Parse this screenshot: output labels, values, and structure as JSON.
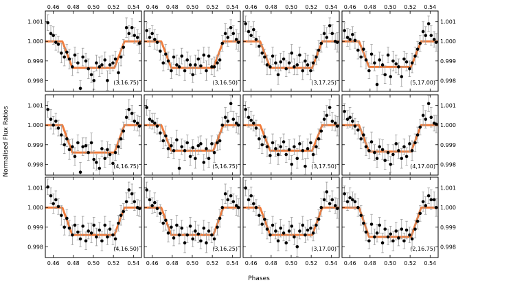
{
  "figure": {
    "xlabel": "Phases",
    "ylabel": "Normalised Flux Ratios"
  },
  "chart_data": {
    "type": "scatter",
    "layout": {
      "rows": 3,
      "cols": 4
    },
    "xlabel": "Phases",
    "ylabel": "Normalised Flux Ratios",
    "xlim": [
      0.452,
      0.548
    ],
    "ylim": [
      0.99745,
      1.00155
    ],
    "xticks": [
      0.46,
      0.48,
      0.5,
      0.52,
      0.54
    ],
    "xtick_labels": [
      "0.46",
      "0.48",
      "0.50",
      "0.52",
      "0.54"
    ],
    "yticks": [
      0.998,
      0.999,
      1.0,
      1.001
    ],
    "ytick_labels": [
      "0.998",
      "0.999",
      "1.000",
      "1.001"
    ],
    "model_color": "#f07c3c",
    "point_color": "#000000",
    "errorbar_color": "#9a9a9a",
    "phases": [
      0.4545,
      0.4575,
      0.46,
      0.4625,
      0.465,
      0.468,
      0.471,
      0.4735,
      0.476,
      0.479,
      0.4815,
      0.4845,
      0.487,
      0.4895,
      0.4925,
      0.495,
      0.498,
      0.5005,
      0.503,
      0.506,
      0.5085,
      0.5115,
      0.514,
      0.5165,
      0.5195,
      0.522,
      0.525,
      0.5275,
      0.53,
      0.533,
      0.5355,
      0.5385,
      0.541,
      0.544,
      0.546
    ],
    "panels": [
      {
        "label": "(3,16.75)",
        "model": {
          "depth": 0.00135,
          "t1": 0.469,
          "t2": 0.479,
          "t3": 0.521,
          "t4": 0.531
        },
        "flux": [
          1.00095,
          1.0004,
          1.0003,
          0.99995,
          0.99985,
          0.9994,
          0.9992,
          0.99945,
          0.9991,
          0.9987,
          0.9993,
          0.9989,
          0.9976,
          0.9992,
          0.999,
          0.9986,
          0.9983,
          0.998,
          0.9989,
          0.9987,
          0.9988,
          0.99905,
          0.998,
          0.9988,
          0.9989,
          0.9991,
          0.9984,
          0.9992,
          0.9997,
          1.0007,
          1.0004,
          1.0007,
          1.0003,
          1.0002,
          0.9999
        ],
        "err": [
          0.0004,
          0.0004,
          0.00045,
          0.0004,
          0.0004,
          0.0005,
          0.00045,
          0.0004,
          0.0005,
          0.00045,
          0.0004,
          0.0005,
          0.0004,
          0.00045,
          0.0004,
          0.0005,
          0.0004,
          0.00045,
          0.0004,
          0.0005,
          0.00045,
          0.0004,
          0.0005,
          0.00045,
          0.0004,
          0.0004,
          0.0005,
          0.00045,
          0.0004,
          0.0005,
          0.0004,
          0.00045,
          0.0004,
          0.0004,
          0.0005
        ]
      },
      {
        "label": "(3,16.50)",
        "model": {
          "depth": 0.00135,
          "t1": 0.469,
          "t2": 0.479,
          "t3": 0.521,
          "t4": 0.531
        },
        "flux": [
          1.00055,
          1.0002,
          1.0004,
          1.0001,
          0.99995,
          0.9995,
          0.9989,
          0.99935,
          0.999,
          0.9985,
          0.9992,
          0.9988,
          0.9987,
          0.99925,
          0.9985,
          0.99905,
          0.9988,
          0.9983,
          0.9988,
          0.9991,
          0.99875,
          0.9993,
          0.9985,
          0.99925,
          0.9987,
          0.9987,
          0.9989,
          0.99905,
          0.9999,
          1.0004,
          1.0002,
          1.0007,
          1.0004,
          1.0001,
          0.99995
        ],
        "err": [
          0.0004,
          0.00045,
          0.0004,
          0.0005,
          0.0004,
          0.00045,
          0.0004,
          0.0005,
          0.00045,
          0.0004,
          0.0004,
          0.0005,
          0.00045,
          0.0004,
          0.0005,
          0.0004,
          0.00045,
          0.0004,
          0.0005,
          0.00045,
          0.0004,
          0.0004,
          0.0005,
          0.00045,
          0.0004,
          0.0005,
          0.0004,
          0.00045,
          0.0004,
          0.0005,
          0.00045,
          0.0004,
          0.0004,
          0.0005,
          0.00045
        ]
      },
      {
        "label": "(3,17.25)",
        "model": {
          "depth": 0.00135,
          "t1": 0.469,
          "t2": 0.479,
          "t3": 0.521,
          "t4": 0.531
        },
        "flux": [
          1.0009,
          1.0005,
          1.0003,
          1.0006,
          1.0001,
          0.99975,
          0.9994,
          0.9992,
          0.9988,
          0.9987,
          0.99925,
          0.9989,
          0.9983,
          0.99895,
          0.9991,
          0.9986,
          0.9989,
          0.9994,
          0.9987,
          0.9988,
          0.9993,
          0.9985,
          0.999,
          0.9988,
          0.9985,
          0.9989,
          0.9992,
          0.99955,
          0.9999,
          1.0004,
          1.0002,
          1.0008,
          1.0004,
          1.0,
          0.99995
        ],
        "err": [
          0.0004,
          0.0005,
          0.00045,
          0.0004,
          0.0004,
          0.0005,
          0.00045,
          0.0004,
          0.0005,
          0.0004,
          0.00045,
          0.0004,
          0.0005,
          0.00045,
          0.0004,
          0.0004,
          0.0005,
          0.00045,
          0.0004,
          0.0005,
          0.0004,
          0.00045,
          0.0004,
          0.0005,
          0.00045,
          0.0004,
          0.0004,
          0.0005,
          0.00045,
          0.0004,
          0.0005,
          0.0004,
          0.00045,
          0.0004,
          0.0005
        ]
      },
      {
        "label": "(5,17.00)",
        "model": {
          "depth": 0.0013,
          "t1": 0.469,
          "t2": 0.479,
          "t3": 0.521,
          "t4": 0.531
        },
        "flux": [
          1.00055,
          1.0002,
          1.0001,
          1.00035,
          1.00005,
          0.99955,
          0.9992,
          0.9996,
          0.99905,
          0.9985,
          0.99935,
          0.9989,
          0.9978,
          0.99905,
          0.9988,
          0.9983,
          0.9993,
          0.9982,
          0.999,
          0.99885,
          0.9987,
          0.9982,
          0.9991,
          0.99895,
          0.9986,
          0.9989,
          0.99925,
          0.9996,
          0.9999,
          1.0005,
          1.0003,
          1.0009,
          1.0003,
          1.0001,
          0.99995
        ],
        "err": [
          0.0004,
          0.00045,
          0.0005,
          0.0004,
          0.0004,
          0.00045,
          0.0005,
          0.0004,
          0.00045,
          0.0004,
          0.0005,
          0.0004,
          0.00045,
          0.0004,
          0.0005,
          0.00045,
          0.0004,
          0.0004,
          0.0005,
          0.00045,
          0.0004,
          0.0005,
          0.0004,
          0.00045,
          0.0004,
          0.0005,
          0.00045,
          0.0004,
          0.0004,
          0.0005,
          0.00045,
          0.0004,
          0.0005,
          0.0004,
          0.00045
        ]
      },
      {
        "label": "(4,16.75)",
        "model": {
          "depth": 0.0014,
          "t1": 0.469,
          "t2": 0.479,
          "t3": 0.521,
          "t4": 0.531
        },
        "flux": [
          1.0008,
          1.0003,
          1.0,
          1.0002,
          0.99985,
          0.9995,
          0.999,
          0.9993,
          0.99875,
          0.9989,
          0.9984,
          0.9991,
          0.9976,
          0.9989,
          0.99895,
          0.9986,
          0.9991,
          0.99825,
          0.9981,
          0.9978,
          0.9988,
          0.9983,
          0.99875,
          0.9985,
          0.99805,
          0.9986,
          0.9989,
          0.9993,
          0.9997,
          1.0004,
          1.0008,
          1.0006,
          1.0002,
          1.0001,
          0.99995
        ],
        "err": [
          0.0004,
          0.0005,
          0.00045,
          0.0004,
          0.0004,
          0.0005,
          0.00045,
          0.0004,
          0.0005,
          0.0004,
          0.00045,
          0.0004,
          0.0005,
          0.00045,
          0.0004,
          0.0004,
          0.0005,
          0.00045,
          0.0004,
          0.0005,
          0.0004,
          0.00045,
          0.0004,
          0.0005,
          0.00045,
          0.0004,
          0.0004,
          0.0005,
          0.00045,
          0.0004,
          0.0005,
          0.0004,
          0.00045,
          0.0004,
          0.0005
        ]
      },
      {
        "label": "(5,16.75)",
        "model": {
          "depth": 0.0013,
          "t1": 0.469,
          "t2": 0.479,
          "t3": 0.521,
          "t4": 0.531
        },
        "flux": [
          1.0009,
          1.0003,
          1.0002,
          1.0001,
          0.99995,
          0.9996,
          0.9992,
          0.99945,
          0.9988,
          0.99895,
          0.9987,
          0.99925,
          0.9978,
          0.9989,
          0.9987,
          0.9991,
          0.9984,
          0.99885,
          0.9983,
          0.99895,
          0.99905,
          0.9981,
          0.9988,
          0.9983,
          0.99905,
          0.9986,
          0.9991,
          0.9992,
          1.0,
          1.0004,
          1.0002,
          1.0011,
          1.0003,
          1.0001,
          1.0
        ],
        "err": [
          0.0004,
          0.00045,
          0.0004,
          0.0005,
          0.0004,
          0.00045,
          0.0004,
          0.0005,
          0.00045,
          0.0004,
          0.0004,
          0.0005,
          0.00045,
          0.0004,
          0.0005,
          0.0004,
          0.00045,
          0.0004,
          0.0005,
          0.00045,
          0.0004,
          0.0004,
          0.0005,
          0.00045,
          0.0004,
          0.0005,
          0.0004,
          0.00045,
          0.0004,
          0.0005,
          0.00045,
          0.0004,
          0.0004,
          0.0005,
          0.00045
        ]
      },
      {
        "label": "(3,17.50)",
        "model": {
          "depth": 0.0013,
          "t1": 0.469,
          "t2": 0.479,
          "t3": 0.521,
          "t4": 0.531
        },
        "flux": [
          1.0008,
          1.0004,
          1.00025,
          1.0001,
          0.99985,
          0.9993,
          0.999,
          0.9994,
          0.9989,
          0.99845,
          0.9991,
          0.9988,
          0.9985,
          0.9989,
          0.99915,
          0.9985,
          0.99875,
          0.998,
          0.9989,
          0.9983,
          0.99905,
          0.9987,
          0.9979,
          0.9988,
          0.9991,
          0.9985,
          0.9989,
          0.9993,
          0.9997,
          1.0003,
          1.0005,
          1.0009,
          1.0002,
          1.0001,
          0.99995
        ],
        "err": [
          0.0004,
          0.0005,
          0.00045,
          0.0004,
          0.0004,
          0.0005,
          0.00045,
          0.0004,
          0.0005,
          0.0004,
          0.00045,
          0.0004,
          0.0005,
          0.00045,
          0.0004,
          0.0004,
          0.0005,
          0.00045,
          0.0004,
          0.0005,
          0.0004,
          0.00045,
          0.0004,
          0.0005,
          0.00045,
          0.0004,
          0.0004,
          0.0005,
          0.00045,
          0.0004,
          0.0005,
          0.0004,
          0.00045,
          0.0004,
          0.0005
        ]
      },
      {
        "label": "(4,17.00)",
        "model": {
          "depth": 0.00135,
          "t1": 0.469,
          "t2": 0.479,
          "t3": 0.521,
          "t4": 0.531
        },
        "flux": [
          1.0007,
          1.0003,
          1.0004,
          1.0002,
          0.99995,
          0.99975,
          0.9993,
          0.9995,
          0.9989,
          0.9987,
          0.99915,
          0.9986,
          0.9983,
          0.9989,
          0.99875,
          0.9982,
          0.9986,
          0.998,
          0.9985,
          0.99905,
          0.9987,
          0.9983,
          0.9989,
          0.9984,
          0.99905,
          0.9987,
          0.9991,
          0.9995,
          0.9999,
          1.0005,
          1.0003,
          1.0011,
          1.0004,
          1.0001,
          1.00005
        ],
        "err": [
          0.0004,
          0.00045,
          0.0005,
          0.0004,
          0.0004,
          0.00045,
          0.0005,
          0.0004,
          0.00045,
          0.0004,
          0.0005,
          0.0004,
          0.00045,
          0.0004,
          0.0005,
          0.00045,
          0.0004,
          0.0004,
          0.0005,
          0.00045,
          0.0004,
          0.0005,
          0.0004,
          0.00045,
          0.0004,
          0.0005,
          0.00045,
          0.0004,
          0.0004,
          0.0005,
          0.00045,
          0.0004,
          0.0005,
          0.0004,
          0.00045
        ]
      },
      {
        "label": "(4,16.50)",
        "model": {
          "depth": 0.0014,
          "t1": 0.469,
          "t2": 0.479,
          "t3": 0.521,
          "t4": 0.531
        },
        "flux": [
          1.00105,
          1.0006,
          1.0002,
          1.0004,
          1.00005,
          0.9996,
          0.999,
          0.99945,
          0.99895,
          0.9986,
          0.9991,
          0.99875,
          0.9984,
          0.99905,
          0.9983,
          0.9988,
          0.9987,
          0.9991,
          0.9985,
          0.99885,
          0.9983,
          0.9991,
          0.9985,
          0.9989,
          0.9986,
          0.9984,
          0.9992,
          0.9996,
          0.9998,
          1.0003,
          1.0009,
          1.0007,
          1.0003,
          1.0,
          0.99995
        ],
        "err": [
          0.0004,
          0.0004,
          0.0005,
          0.00045,
          0.0004,
          0.0005,
          0.0004,
          0.00045,
          0.0004,
          0.0005,
          0.00045,
          0.0004,
          0.0004,
          0.0005,
          0.00045,
          0.0004,
          0.0005,
          0.0004,
          0.00045,
          0.0004,
          0.0005,
          0.00045,
          0.0004,
          0.0004,
          0.0005,
          0.00045,
          0.0004,
          0.0005,
          0.0004,
          0.00045,
          0.0004,
          0.0005,
          0.00045,
          0.0004,
          0.0004
        ]
      },
      {
        "label": "(3,16.25)",
        "model": {
          "depth": 0.0014,
          "t1": 0.469,
          "t2": 0.479,
          "t3": 0.521,
          "t4": 0.531
        },
        "flux": [
          1.0009,
          1.0004,
          1.0001,
          1.00025,
          0.99995,
          0.9997,
          0.9992,
          0.99935,
          0.9987,
          0.999,
          0.99845,
          0.9991,
          0.9986,
          0.99895,
          0.9982,
          0.9986,
          0.99905,
          0.9984,
          0.9988,
          0.99865,
          0.9983,
          0.99895,
          0.9982,
          0.9988,
          0.9986,
          0.9984,
          0.999,
          0.99945,
          1.0,
          1.0007,
          1.0004,
          1.0006,
          1.0003,
          1.0001,
          1.0
        ],
        "err": [
          0.0004,
          0.00045,
          0.0004,
          0.0005,
          0.0004,
          0.00045,
          0.0004,
          0.0005,
          0.00045,
          0.0004,
          0.0004,
          0.0005,
          0.00045,
          0.0004,
          0.0005,
          0.0004,
          0.00045,
          0.0004,
          0.0005,
          0.00045,
          0.0004,
          0.0004,
          0.0005,
          0.00045,
          0.0004,
          0.0005,
          0.0004,
          0.00045,
          0.0004,
          0.0005,
          0.00045,
          0.0004,
          0.0004,
          0.0005,
          0.00045
        ]
      },
      {
        "label": "(3,17.00)",
        "model": {
          "depth": 0.0014,
          "t1": 0.469,
          "t2": 0.479,
          "t3": 0.521,
          "t4": 0.531
        },
        "flux": [
          1.001,
          1.0004,
          1.0006,
          1.0002,
          1.0,
          0.9996,
          0.99915,
          0.9994,
          0.9989,
          0.9986,
          0.9991,
          0.9988,
          0.9983,
          0.99895,
          0.9987,
          0.9982,
          0.9988,
          0.99905,
          0.9985,
          0.998,
          0.9988,
          0.9991,
          0.9986,
          0.99885,
          0.99895,
          0.9987,
          0.9991,
          0.9994,
          1.0,
          1.0004,
          1.0008,
          1.0002,
          1.0004,
          1.0001,
          0.99995
        ],
        "err": [
          0.0004,
          0.0005,
          0.00045,
          0.0004,
          0.0004,
          0.0005,
          0.00045,
          0.0004,
          0.0005,
          0.0004,
          0.00045,
          0.0004,
          0.0005,
          0.00045,
          0.0004,
          0.0004,
          0.0005,
          0.00045,
          0.0004,
          0.0005,
          0.0004,
          0.00045,
          0.0004,
          0.0005,
          0.00045,
          0.0004,
          0.0004,
          0.0005,
          0.00045,
          0.0004,
          0.0005,
          0.0004,
          0.00045,
          0.0004,
          0.0005
        ]
      },
      {
        "label": "(2,16.75)",
        "model": {
          "depth": 0.0015,
          "t1": 0.469,
          "t2": 0.479,
          "t3": 0.521,
          "t4": 0.531
        },
        "flux": [
          1.0007,
          1.0003,
          1.0005,
          1.0004,
          1.0003,
          1.0,
          0.9996,
          0.9992,
          0.99875,
          0.9983,
          0.99915,
          0.9985,
          0.9987,
          0.9991,
          0.9982,
          0.9989,
          0.9985,
          0.99865,
          0.9983,
          0.9988,
          0.99845,
          0.9989,
          0.9983,
          0.99885,
          0.9986,
          0.9984,
          0.9989,
          0.9993,
          0.9997,
          1.0003,
          1.0001,
          1.0006,
          1.0004,
          1.0004,
          1.0
        ],
        "err": [
          0.0004,
          0.00045,
          0.0005,
          0.0004,
          0.0004,
          0.00045,
          0.0005,
          0.0004,
          0.00045,
          0.0004,
          0.0005,
          0.0004,
          0.00045,
          0.0004,
          0.0005,
          0.00045,
          0.0004,
          0.0004,
          0.0005,
          0.00045,
          0.0004,
          0.0005,
          0.0004,
          0.00045,
          0.0004,
          0.0005,
          0.00045,
          0.0004,
          0.0004,
          0.0005,
          0.00045,
          0.0004,
          0.0005,
          0.0004,
          0.00045
        ]
      }
    ]
  }
}
